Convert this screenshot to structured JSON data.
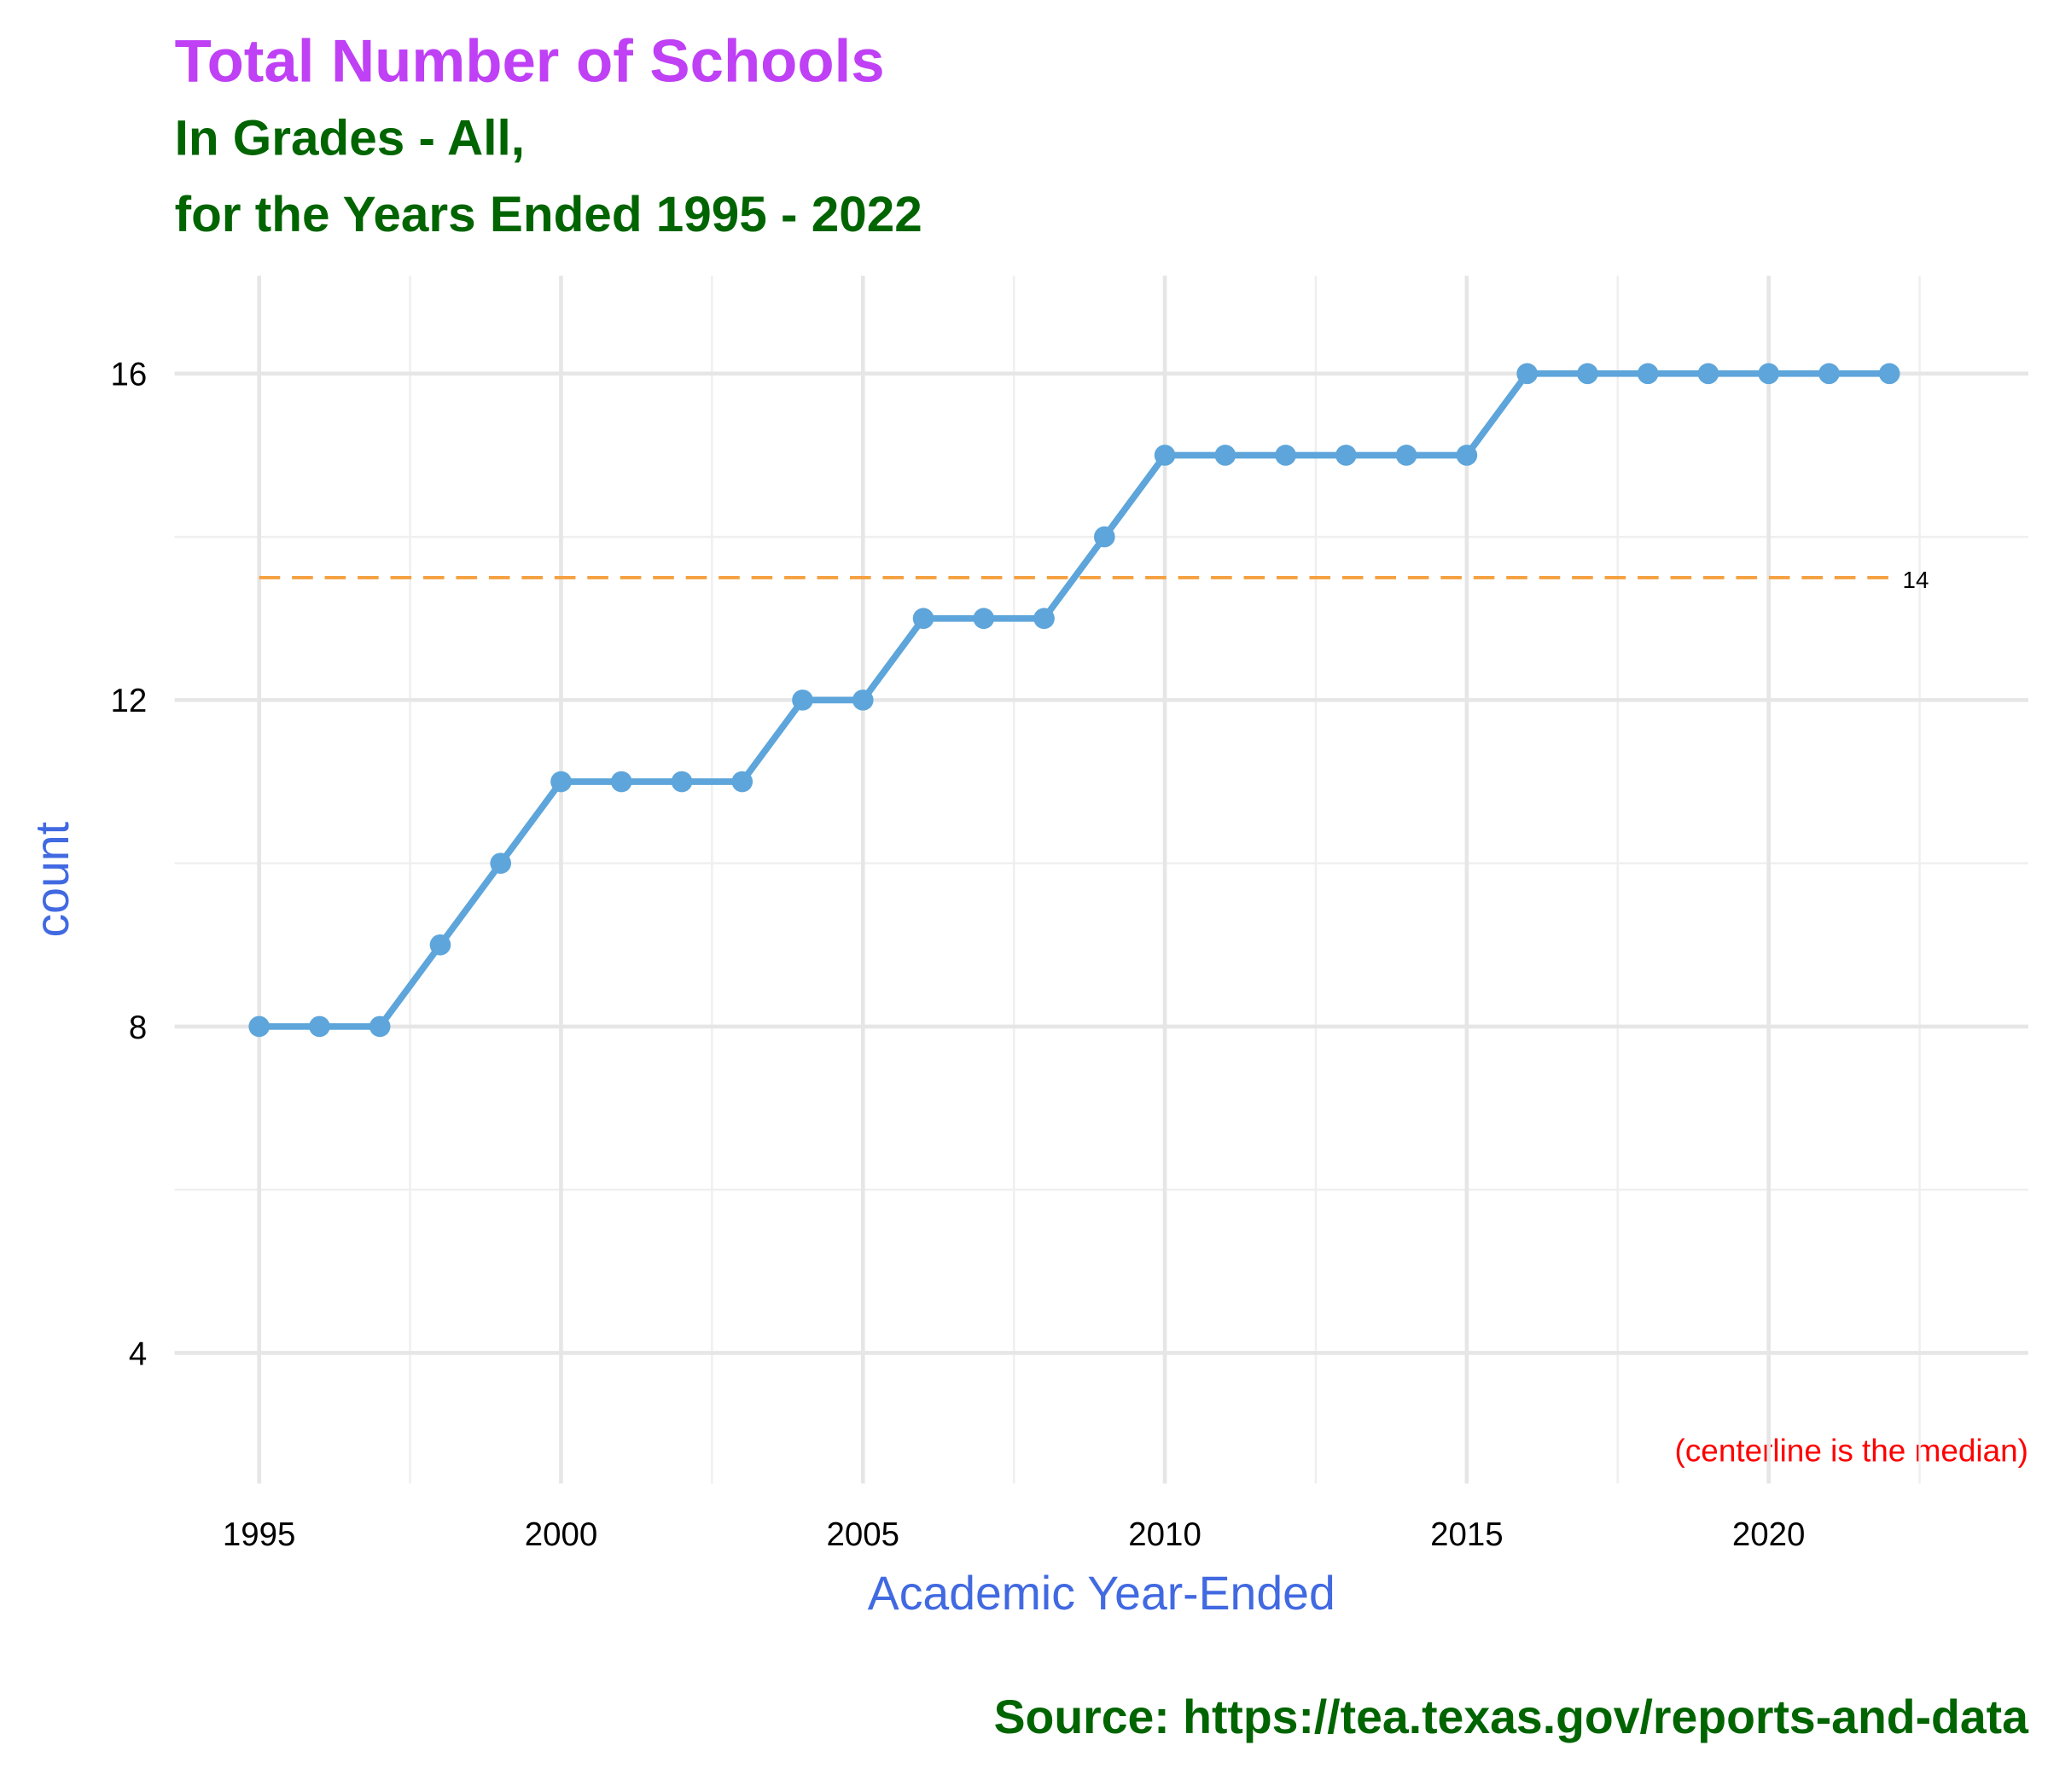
{
  "chart_data": {
    "type": "line",
    "title": "Total Number of Schools",
    "subtitle": [
      "In Grades - All,",
      "for the Years Ended 1995 - 2022"
    ],
    "x_label": "Academic Year-Ended",
    "y_label": "count",
    "caption": "Source:  https://tea.texas.gov/reports-and-data",
    "annotation": "(centerline is the median)",
    "x": [
      1995,
      1996,
      1997,
      1998,
      1999,
      2000,
      2001,
      2002,
      2003,
      2004,
      2005,
      2006,
      2007,
      2008,
      2009,
      2010,
      2011,
      2012,
      2013,
      2014,
      2015,
      2016,
      2017,
      2018,
      2019,
      2020,
      2021,
      2022
    ],
    "series": [
      {
        "name": "count",
        "color": "#5DA5DA",
        "values": [
          8,
          8,
          8,
          9,
          10,
          11,
          11,
          11,
          11,
          12,
          12,
          13,
          13,
          13,
          14,
          15,
          15,
          15,
          15,
          15,
          15,
          16,
          16,
          16,
          16,
          16,
          16,
          16
        ]
      }
    ],
    "median": {
      "value": 13.5,
      "label": "14",
      "color": "#F5A040"
    },
    "xlim": [
      1993.6,
      2024.3
    ],
    "xticks": [
      1995,
      2000,
      2005,
      2010,
      2015,
      2020
    ],
    "ylim": [
      2.4,
      17.2
    ],
    "yticks": [
      4,
      8,
      12,
      16
    ],
    "grid": true
  }
}
